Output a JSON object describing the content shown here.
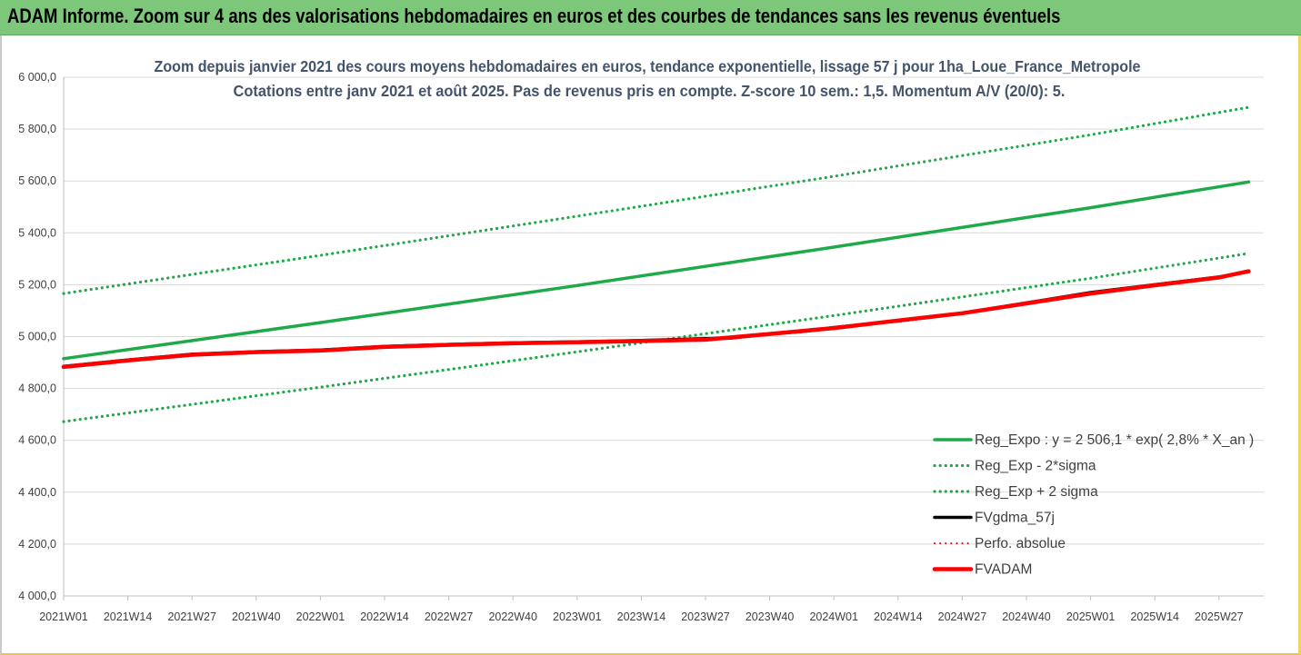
{
  "header": {
    "title": "ADAM Informe. Zoom sur 4 ans des valorisations hebdomadaires en euros et des courbes de tendances sans les revenus éventuels"
  },
  "chart_data": {
    "type": "line",
    "title_line1": "Zoom depuis janvier 2021 des cours moyens hebdomadaires en euros, tendance exponentielle, lissage 57 j pour 1ha_Loue_France_Metropole",
    "title_line2": "Cotations entre janv 2021 et août 2025.  Pas de revenus pris en compte. Z-score 10 sem.: 1,5. Momentum A/V (20/0): 5.",
    "xlabel": "",
    "ylabel": "",
    "ylim": [
      4000,
      6000
    ],
    "y_ticks": [
      "4 000,0",
      "4 200,0",
      "4 400,0",
      "4 600,0",
      "4 800,0",
      "5 000,0",
      "5 200,0",
      "5 400,0",
      "5 600,0",
      "5 800,0",
      "6 000,0"
    ],
    "x_ticks": [
      "2021W01",
      "2021W14",
      "2021W27",
      "2021W40",
      "2022W01",
      "2022W14",
      "2022W27",
      "2022W40",
      "2023W01",
      "2023W14",
      "2023W27",
      "2023W40",
      "2024W01",
      "2024W14",
      "2024W27",
      "2024W40",
      "2025W01",
      "2025W14",
      "2025W27"
    ],
    "x_range_weeks": [
      0,
      240
    ],
    "grid": "horizontal",
    "legend_position": "bottom-right",
    "series": [
      {
        "name": "Reg_Expo : y = 2 506,1 * exp( 2,8% *  X_an )",
        "color": "#1faa4a",
        "style": "solid",
        "points": [
          [
            0,
            4915
          ],
          [
            52,
            5054
          ],
          [
            104,
            5197
          ],
          [
            156,
            5345
          ],
          [
            208,
            5497
          ],
          [
            240,
            5596
          ]
        ]
      },
      {
        "name": "Reg_Exp - 2*sigma",
        "color": "#1faa4a",
        "style": "dotted",
        "points": [
          [
            0,
            4672
          ],
          [
            52,
            4805
          ],
          [
            104,
            4941
          ],
          [
            156,
            5081
          ],
          [
            208,
            5225
          ],
          [
            240,
            5321
          ]
        ]
      },
      {
        "name": "Reg_Exp + 2 sigma",
        "color": "#1faa4a",
        "style": "dotted",
        "points": [
          [
            0,
            5166
          ],
          [
            52,
            5313
          ],
          [
            104,
            5464
          ],
          [
            156,
            5618
          ],
          [
            208,
            5778
          ],
          [
            240,
            5884
          ]
        ]
      },
      {
        "name": "FVgdma_57j",
        "color": "#000000",
        "style": "solid",
        "points": [
          [
            0,
            4885
          ],
          [
            13,
            4910
          ],
          [
            26,
            4932
          ],
          [
            39,
            4942
          ],
          [
            52,
            4948
          ],
          [
            65,
            4962
          ],
          [
            78,
            4970
          ],
          [
            91,
            4976
          ],
          [
            104,
            4980
          ],
          [
            117,
            4985
          ],
          [
            126,
            4990
          ],
          [
            130,
            4992
          ],
          [
            135,
            4994
          ],
          [
            143,
            5010
          ],
          [
            150,
            5020
          ],
          [
            156,
            5035
          ],
          [
            169,
            5060
          ],
          [
            182,
            5090
          ],
          [
            195,
            5130
          ],
          [
            208,
            5170
          ],
          [
            221,
            5200
          ],
          [
            234,
            5230
          ],
          [
            240,
            5250
          ]
        ]
      },
      {
        "name": "Perfo. absolue",
        "color": "#e00000",
        "style": "dotted",
        "points": [
          [
            0,
            4885
          ],
          [
            13,
            4910
          ],
          [
            26,
            4932
          ],
          [
            39,
            4942
          ],
          [
            52,
            4948
          ],
          [
            65,
            4962
          ],
          [
            78,
            4970
          ],
          [
            91,
            4976
          ],
          [
            104,
            4980
          ],
          [
            117,
            4985
          ],
          [
            130,
            4988
          ],
          [
            143,
            5010
          ],
          [
            156,
            5035
          ],
          [
            169,
            5060
          ],
          [
            182,
            5090
          ],
          [
            195,
            5130
          ],
          [
            208,
            5170
          ],
          [
            221,
            5200
          ],
          [
            234,
            5230
          ],
          [
            240,
            5250
          ]
        ]
      },
      {
        "name": "FVADAM",
        "color": "#ff0000",
        "style": "thick",
        "points": [
          [
            0,
            4883
          ],
          [
            13,
            4908
          ],
          [
            26,
            4930
          ],
          [
            39,
            4940
          ],
          [
            52,
            4946
          ],
          [
            65,
            4960
          ],
          [
            78,
            4968
          ],
          [
            91,
            4974
          ],
          [
            104,
            4978
          ],
          [
            117,
            4983
          ],
          [
            130,
            4988
          ],
          [
            143,
            5010
          ],
          [
            156,
            5033
          ],
          [
            169,
            5062
          ],
          [
            182,
            5090
          ],
          [
            195,
            5128
          ],
          [
            208,
            5166
          ],
          [
            221,
            5198
          ],
          [
            234,
            5228
          ],
          [
            240,
            5252
          ]
        ]
      }
    ]
  }
}
